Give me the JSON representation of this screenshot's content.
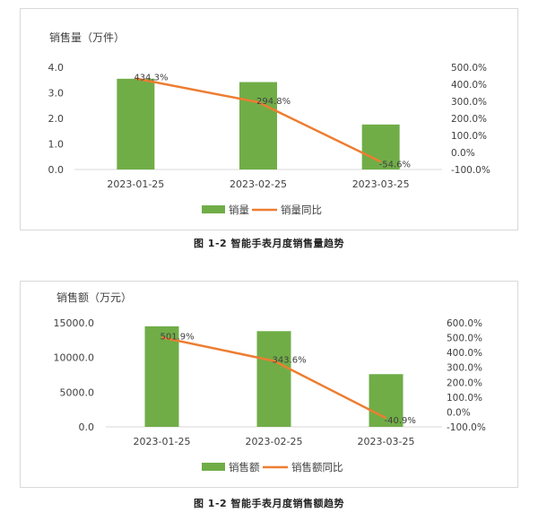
{
  "chart_data": [
    {
      "type": "bar+line",
      "title": "销售量（万件）",
      "caption": "图 1-2  智能手表月度销售量趋势",
      "categories": [
        "2023-01-25",
        "2023-02-25",
        "2023-03-25"
      ],
      "bar_series": {
        "name": "销量",
        "values": [
          3.55,
          3.42,
          1.76
        ],
        "color": "#70ad47"
      },
      "line_series": {
        "name": "销量同比",
        "values": [
          434.3,
          294.8,
          -54.6
        ],
        "labels": [
          "434.3%",
          "294.8%",
          "-54.6%"
        ],
        "color": "#ed7d31"
      },
      "y_left": {
        "ticks": [
          "4.0",
          "3.0",
          "2.0",
          "1.0",
          "0.0"
        ],
        "range": [
          0,
          4
        ]
      },
      "y_right": {
        "ticks": [
          "500.0%",
          "400.0%",
          "300.0%",
          "200.0%",
          "100.0%",
          "0.0%",
          "-100.0%"
        ],
        "range": [
          -100,
          500
        ]
      },
      "legend_position": "bottom"
    },
    {
      "type": "bar+line",
      "title": "销售额（万元）",
      "caption": "图 1-2  智能手表月度销售额趋势",
      "categories": [
        "2023-01-25",
        "2023-02-25",
        "2023-03-25"
      ],
      "bar_series": {
        "name": "销售额",
        "values": [
          14500,
          13800,
          7600
        ],
        "color": "#70ad47"
      },
      "line_series": {
        "name": "销售额同比",
        "values": [
          501.9,
          343.6,
          -40.9
        ],
        "labels": [
          "501.9%",
          "343.6%",
          "-40.9%"
        ],
        "color": "#ed7d31"
      },
      "y_left": {
        "ticks": [
          "15000.0",
          "10000.0",
          "5000.0",
          "0.0"
        ],
        "range": [
          0,
          15000
        ]
      },
      "y_right": {
        "ticks": [
          "600.0%",
          "500.0%",
          "400.0%",
          "300.0%",
          "200.0%",
          "100.0%",
          "0.0%",
          "-100.0%"
        ],
        "range": [
          -100,
          600
        ]
      },
      "legend_position": "bottom"
    }
  ]
}
